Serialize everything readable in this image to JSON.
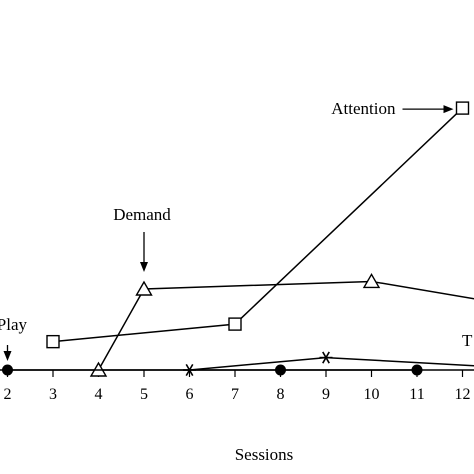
{
  "chart_data": {
    "type": "line",
    "title": "",
    "xlabel": "Sessions",
    "ylabel": "",
    "x_ticks": [
      2,
      3,
      4,
      5,
      6,
      7,
      8,
      9,
      10,
      11,
      12
    ],
    "xlim": [
      1.85,
      13.1
    ],
    "ylim": [
      0,
      100
    ],
    "grid": false,
    "series": [
      {
        "marker": "square",
        "points": [
          {
            "x": 3,
            "y": 10.5
          },
          {
            "x": 7,
            "y": 17.0
          },
          {
            "x": 12,
            "y": 97.0
          }
        ]
      },
      {
        "marker": "triangle",
        "points": [
          {
            "x": 4,
            "y": 0
          },
          {
            "x": 5,
            "y": 30.0
          },
          {
            "x": 10,
            "y": 32.8
          },
          {
            "x": 13.1,
            "y": 24.0
          }
        ]
      },
      {
        "marker": "star",
        "points": [
          {
            "x": 6,
            "y": 0
          },
          {
            "x": 9,
            "y": 4.6
          },
          {
            "x": 13.1,
            "y": 0.8
          }
        ]
      },
      {
        "marker": "circle",
        "points": [
          {
            "x": 2,
            "y": 0
          },
          {
            "x": 8,
            "y": 0
          },
          {
            "x": 11,
            "y": 0
          }
        ]
      }
    ],
    "annotations": [
      {
        "text": "Attention",
        "direction": "right",
        "target": {
          "x": 12,
          "y": 97.0
        }
      },
      {
        "text": "Demand",
        "direction": "down",
        "target": {
          "x": 5,
          "y": 30.0
        }
      },
      {
        "text": "v Play",
        "direction": "down",
        "target": {
          "x": 2,
          "y": 0
        }
      },
      {
        "text": "T",
        "direction": "none",
        "target": {
          "x": 13,
          "y": 10.8
        }
      }
    ]
  }
}
